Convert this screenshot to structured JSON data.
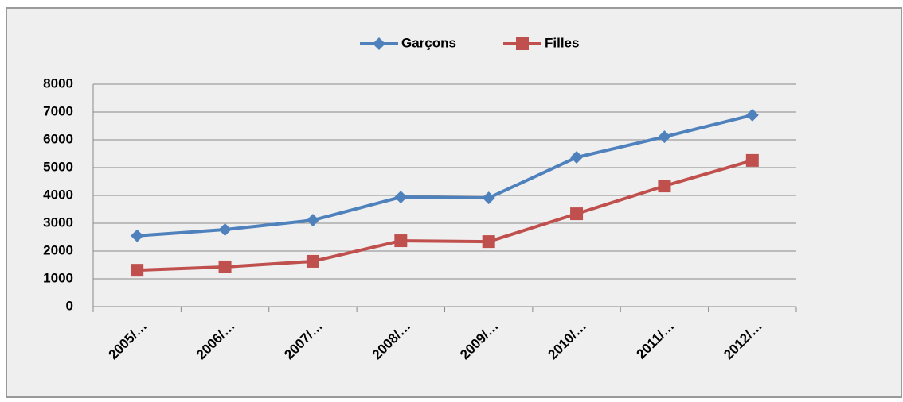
{
  "chart_data": {
    "type": "line",
    "categories": [
      "2005/…",
      "2006/…",
      "2007/…",
      "2008/…",
      "2009/…",
      "2010/…",
      "2011/…",
      "2012/…"
    ],
    "series": [
      {
        "name": "Garçons",
        "color": "#4f81bd",
        "marker": "diamond",
        "values": [
          2550,
          2770,
          3110,
          3940,
          3910,
          5370,
          6110,
          6890
        ]
      },
      {
        "name": "Filles",
        "color": "#c0504d",
        "marker": "square",
        "values": [
          1310,
          1430,
          1630,
          2370,
          2340,
          3340,
          4340,
          5260
        ]
      }
    ],
    "ylim": [
      0,
      8000
    ],
    "yticks": [
      0,
      1000,
      2000,
      3000,
      4000,
      5000,
      6000,
      7000,
      8000
    ],
    "grid": true,
    "legend": "top"
  }
}
